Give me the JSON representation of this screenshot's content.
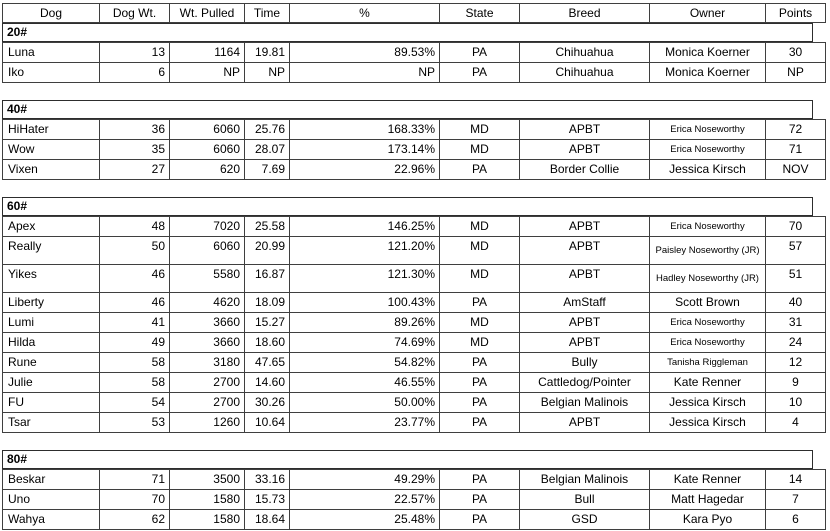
{
  "table": {
    "columns": [
      {
        "key": "dog",
        "label": "Dog"
      },
      {
        "key": "dog_wt",
        "label": "Dog Wt."
      },
      {
        "key": "wt_pulled",
        "label": "Wt. Pulled"
      },
      {
        "key": "time",
        "label": "Time"
      },
      {
        "key": "pct",
        "label": "%"
      },
      {
        "key": "state",
        "label": "State"
      },
      {
        "key": "breed",
        "label": "Breed"
      },
      {
        "key": "owner",
        "label": "Owner"
      },
      {
        "key": "points",
        "label": "Points"
      }
    ],
    "sections": [
      {
        "label": "20#",
        "rows": [
          {
            "dog": "Luna",
            "dog_wt": "13",
            "wt_pulled": "1164",
            "time": "19.81",
            "pct": "89.53%",
            "state": "PA",
            "breed": "Chihuahua",
            "owner": "Monica Koerner",
            "points": "30"
          },
          {
            "dog": "Iko",
            "dog_wt": "6",
            "wt_pulled": "NP",
            "time": "NP",
            "pct": "NP",
            "state": "PA",
            "breed": "Chihuahua",
            "owner": "Monica Koerner",
            "points": "NP"
          }
        ]
      },
      {
        "label": "40#",
        "rows": [
          {
            "dog": "HiHater",
            "dog_wt": "36",
            "wt_pulled": "6060",
            "time": "25.76",
            "pct": "168.33%",
            "state": "MD",
            "breed": "APBT",
            "owner": "Erica Noseworthy",
            "owner_small": true,
            "points": "72"
          },
          {
            "dog": "Wow",
            "dog_wt": "35",
            "wt_pulled": "6060",
            "time": "28.07",
            "pct": "173.14%",
            "state": "MD",
            "breed": "APBT",
            "owner": "Erica Noseworthy",
            "owner_small": true,
            "points": "71"
          },
          {
            "dog": "Vixen",
            "dog_wt": "27",
            "wt_pulled": "620",
            "time": "7.69",
            "pct": "22.96%",
            "state": "PA",
            "breed": "Border Collie",
            "owner": "Jessica Kirsch",
            "points": "NOV"
          }
        ]
      },
      {
        "label": "60#",
        "rows": [
          {
            "dog": "Apex",
            "dog_wt": "48",
            "wt_pulled": "7020",
            "time": "25.58",
            "pct": "146.25%",
            "state": "MD",
            "breed": "APBT",
            "owner": "Erica Noseworthy",
            "owner_small": true,
            "points": "70"
          },
          {
            "dog": "Really",
            "dog_wt": "50",
            "wt_pulled": "6060",
            "time": "20.99",
            "pct": "121.20%",
            "state": "MD",
            "breed": "APBT",
            "owner": "Paisley Noseworthy (JR)",
            "owner_small": true,
            "tall": true,
            "points": "57"
          },
          {
            "dog": "Yikes",
            "dog_wt": "46",
            "wt_pulled": "5580",
            "time": "16.87",
            "pct": "121.30%",
            "state": "MD",
            "breed": "APBT",
            "owner": "Hadley Noseworthy (JR)",
            "owner_small": true,
            "tall": true,
            "points": "51"
          },
          {
            "dog": "Liberty",
            "dog_wt": "46",
            "wt_pulled": "4620",
            "time": "18.09",
            "pct": "100.43%",
            "state": "PA",
            "breed": "AmStaff",
            "owner": "Scott Brown",
            "points": "40"
          },
          {
            "dog": "Lumi",
            "dog_wt": "41",
            "wt_pulled": "3660",
            "time": "15.27",
            "pct": "89.26%",
            "state": "MD",
            "breed": "APBT",
            "owner": "Erica Noseworthy",
            "owner_small": true,
            "points": "31"
          },
          {
            "dog": "Hilda",
            "dog_wt": "49",
            "wt_pulled": "3660",
            "time": "18.60",
            "pct": "74.69%",
            "state": "MD",
            "breed": "APBT",
            "owner": "Erica Noseworthy",
            "owner_small": true,
            "points": "24"
          },
          {
            "dog": "Rune",
            "dog_wt": "58",
            "wt_pulled": "3180",
            "time": "47.65",
            "pct": "54.82%",
            "state": "PA",
            "breed": "Bully",
            "owner": "Tanisha Riggleman",
            "owner_small": true,
            "points": "12"
          },
          {
            "dog": "Julie",
            "dog_wt": "58",
            "wt_pulled": "2700",
            "time": "14.60",
            "pct": "46.55%",
            "state": "PA",
            "breed": "Cattledog/Pointer",
            "owner": "Kate Renner",
            "points": "9"
          },
          {
            "dog": "FU",
            "dog_wt": "54",
            "wt_pulled": "2700",
            "time": "30.26",
            "pct": "50.00%",
            "state": "PA",
            "breed": "Belgian Malinois",
            "owner": "Jessica Kirsch",
            "points": "10"
          },
          {
            "dog": "Tsar",
            "dog_wt": "53",
            "wt_pulled": "1260",
            "time": "10.64",
            "pct": "23.77%",
            "state": "PA",
            "breed": "APBT",
            "owner": "Jessica Kirsch",
            "points": "4"
          }
        ]
      },
      {
        "label": "80#",
        "rows": [
          {
            "dog": "Beskar",
            "dog_wt": "71",
            "wt_pulled": "3500",
            "time": "33.16",
            "pct": "49.29%",
            "state": "PA",
            "breed": "Belgian Malinois",
            "owner": "Kate Renner",
            "points": "14"
          },
          {
            "dog": "Uno",
            "dog_wt": "70",
            "wt_pulled": "1580",
            "time": "15.73",
            "pct": "22.57%",
            "state": "PA",
            "breed": "Bull",
            "owner": "Matt Hagedar",
            "points": "7"
          },
          {
            "dog": "Wahya",
            "dog_wt": "62",
            "wt_pulled": "1580",
            "time": "18.64",
            "pct": "25.48%",
            "state": "PA",
            "breed": "GSD",
            "owner": "Kara Pyo",
            "points": "6"
          }
        ]
      }
    ]
  }
}
